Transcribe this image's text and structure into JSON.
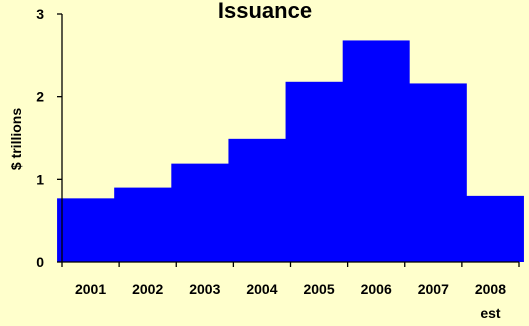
{
  "chart_data": {
    "type": "bar",
    "title": "Issuance",
    "xlabel": "",
    "ylabel": "$ trillions",
    "categories": [
      "2001",
      "2002",
      "2003",
      "2004",
      "2005",
      "2006",
      "2007",
      "2008"
    ],
    "category_sublabels": [
      "",
      "",
      "",
      "",
      "",
      "",
      "",
      "est"
    ],
    "values": [
      0.77,
      0.9,
      1.19,
      1.49,
      2.18,
      2.68,
      2.16,
      0.8
    ],
    "ylim": [
      0,
      3
    ],
    "yticks": [
      0,
      1,
      2,
      3
    ],
    "grid": false,
    "legend": "none",
    "colors": {
      "background": "#ffffcc",
      "bar": "#0000ff",
      "axis": "#000000"
    }
  }
}
